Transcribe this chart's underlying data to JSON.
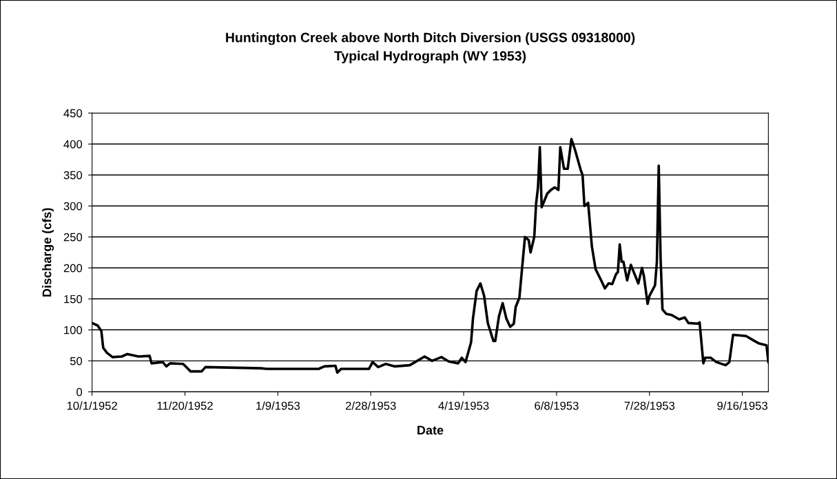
{
  "chart_data": {
    "type": "line",
    "title": "Huntington Creek above North Ditch Diversion (USGS 09318000)\nTypical Hydrograph (WY 1953)",
    "xlabel": "Date",
    "ylabel": "Discharge (cfs)",
    "x": [
      "1952-10-01",
      "1952-10-04",
      "1952-10-06",
      "1952-10-07",
      "1952-10-09",
      "1952-10-12",
      "1952-10-17",
      "1952-10-20",
      "1952-10-26",
      "1952-11-01",
      "1952-11-02",
      "1952-11-08",
      "1952-11-10",
      "1952-11-12",
      "1952-11-19",
      "1952-11-23",
      "1952-11-29",
      "1952-12-01",
      "1952-12-31",
      "1953-01-03",
      "1953-01-31",
      "1953-02-03",
      "1953-02-09",
      "1953-02-10",
      "1953-02-12",
      "1953-02-27",
      "1953-03-01",
      "1953-03-04",
      "1953-03-08",
      "1953-03-13",
      "1953-03-21",
      "1953-03-25",
      "1953-03-29",
      "1953-04-02",
      "1953-04-07",
      "1953-04-11",
      "1953-04-16",
      "1953-04-18",
      "1953-04-20",
      "1953-04-23",
      "1953-04-24",
      "1953-04-26",
      "1953-04-28",
      "1953-04-30",
      "1953-05-02",
      "1953-05-05",
      "1953-05-06",
      "1953-05-08",
      "1953-05-10",
      "1953-05-12",
      "1953-05-14",
      "1953-05-16",
      "1953-05-17",
      "1953-05-19",
      "1953-05-20",
      "1953-05-22",
      "1953-05-24",
      "1953-05-25",
      "1953-05-27",
      "1953-05-28",
      "1953-05-29",
      "1953-05-30",
      "1953-05-31",
      "1953-06-03",
      "1953-06-05",
      "1953-06-07",
      "1953-06-09",
      "1953-06-10",
      "1953-06-12",
      "1953-06-14",
      "1953-06-16",
      "1953-06-18",
      "1953-06-21",
      "1953-06-22",
      "1953-06-23",
      "1953-06-25",
      "1953-06-27",
      "1953-06-29",
      "1953-07-02",
      "1953-07-04",
      "1953-07-06",
      "1953-07-08",
      "1953-07-10",
      "1953-07-11",
      "1953-07-12",
      "1953-07-13",
      "1953-07-14",
      "1953-07-16",
      "1953-07-18",
      "1953-07-22",
      "1953-07-24",
      "1953-07-25",
      "1953-07-27",
      "1953-07-28",
      "1953-07-31",
      "1953-08-01",
      "1953-08-02",
      "1953-08-03",
      "1953-08-04",
      "1953-08-06",
      "1953-08-09",
      "1953-08-13",
      "1953-08-16",
      "1953-08-18",
      "1953-08-23",
      "1953-08-24",
      "1953-08-26",
      "1953-08-27",
      "1953-08-30",
      "1953-09-02",
      "1953-09-07",
      "1953-09-09",
      "1953-09-11",
      "1953-09-18",
      "1953-09-22",
      "1953-09-25",
      "1953-09-29",
      "1953-09-30"
    ],
    "series": [
      {
        "color": "#000000",
        "values": [
          111,
          107,
          98,
          71,
          63,
          56,
          57,
          61,
          57,
          58,
          46,
          48,
          41,
          46,
          45,
          33,
          33,
          40,
          38,
          37,
          37,
          41,
          42,
          31,
          37,
          37,
          48,
          40,
          45,
          41,
          43,
          50,
          57,
          50,
          56,
          49,
          46,
          55,
          48,
          80,
          118,
          163,
          175,
          155,
          111,
          82,
          82,
          122,
          143,
          118,
          105,
          110,
          137,
          152,
          185,
          250,
          245,
          225,
          250,
          304,
          330,
          395,
          298,
          320,
          326,
          330,
          326,
          395,
          360,
          360,
          408,
          390,
          358,
          350,
          300,
          305,
          235,
          198,
          180,
          167,
          175,
          174,
          190,
          193,
          238,
          210,
          210,
          180,
          205,
          175,
          200,
          187,
          142,
          155,
          172,
          210,
          365,
          215,
          133,
          126,
          124,
          117,
          120,
          111,
          110,
          112,
          46,
          55,
          55,
          48,
          43,
          48,
          92,
          90,
          83,
          78,
          75,
          48
        ]
      }
    ],
    "xlim": [
      "1952-10-01",
      "1953-09-30"
    ],
    "xticks": [
      {
        "value": "1952-10-01",
        "label": "10/1/1952"
      },
      {
        "value": "1952-11-20",
        "label": "11/20/1952"
      },
      {
        "value": "1953-01-09",
        "label": "1/9/1953"
      },
      {
        "value": "1953-02-28",
        "label": "2/28/1953"
      },
      {
        "value": "1953-04-19",
        "label": "4/19/1953"
      },
      {
        "value": "1953-06-08",
        "label": "6/8/1953"
      },
      {
        "value": "1953-07-28",
        "label": "7/28/1953"
      },
      {
        "value": "1953-09-16",
        "label": "9/16/1953"
      }
    ],
    "ylim": [
      0,
      450
    ],
    "yticks": [
      0,
      50,
      100,
      150,
      200,
      250,
      300,
      350,
      400,
      450
    ],
    "grid": "y",
    "legend": false,
    "marker": "none",
    "line_style": "solid"
  }
}
